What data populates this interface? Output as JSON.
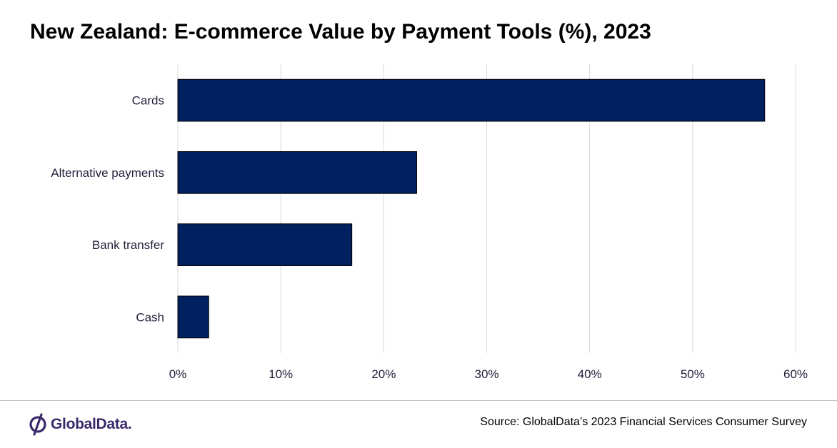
{
  "title": "New Zealand: E-commerce Value by Payment Tools (%), 2023",
  "source": "Source: GlobalData’s 2023 Financial Services Consumer Survey",
  "logo": {
    "text": "GlobalData.",
    "icon": "globaldata-logo-icon"
  },
  "colors": {
    "bar": "#002060",
    "grid": "#d9d9d9",
    "label": "#1f1f3a"
  },
  "chart_data": {
    "type": "bar",
    "orientation": "horizontal",
    "categories": [
      "Cards",
      "Alternative payments",
      "Bank transfer",
      "Cash"
    ],
    "values": [
      57,
      23.2,
      16.9,
      3
    ],
    "xlim": [
      0,
      60
    ],
    "xticks": [
      0,
      10,
      20,
      30,
      40,
      50,
      60
    ],
    "tick_labels": [
      "0%",
      "10%",
      "20%",
      "30%",
      "40%",
      "50%",
      "60%"
    ],
    "unit": "%",
    "grid": "vertical",
    "legend": "none"
  }
}
